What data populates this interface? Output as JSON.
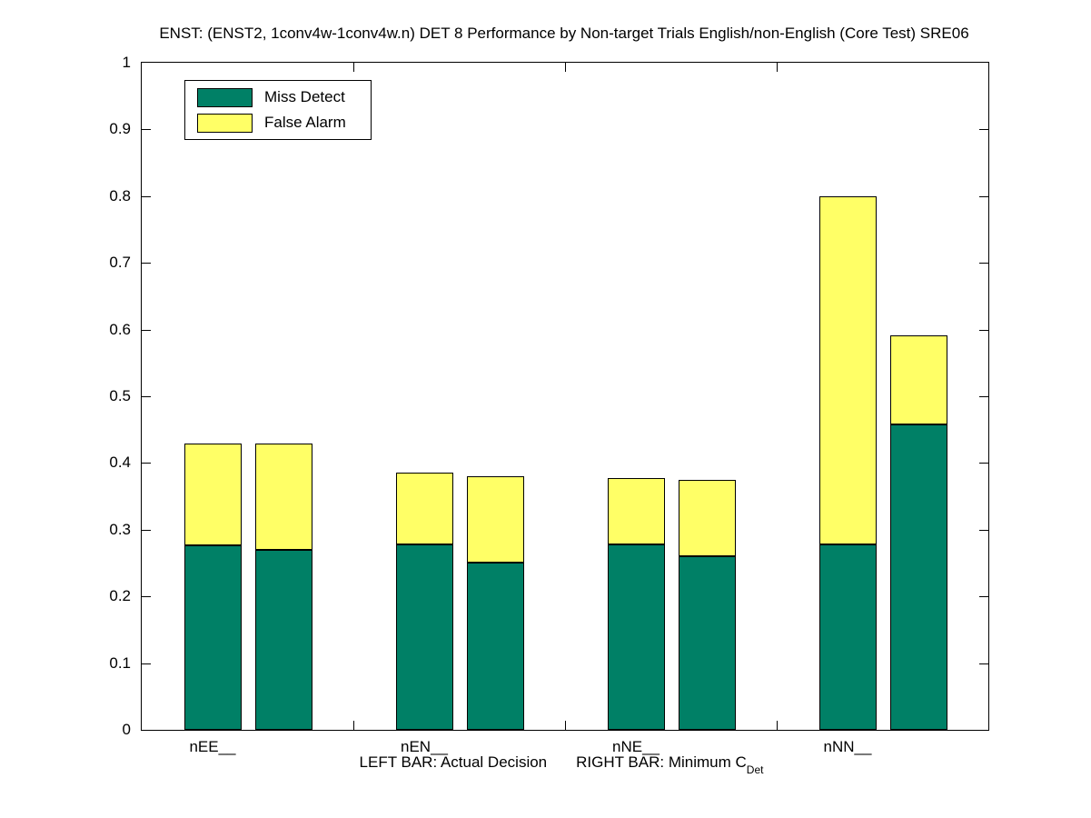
{
  "chart_data": {
    "type": "bar",
    "stacked": true,
    "title": "ENST: (ENST2, 1conv4w-1conv4w.n) DET 8 Performance by Non-target Trials English/non-English (Core Test) SRE06",
    "categories": [
      "nEE__",
      "nEN__",
      "nNE__",
      "nNN__"
    ],
    "yticks": [
      "0",
      "0.1",
      "0.2",
      "0.3",
      "0.4",
      "0.5",
      "0.6",
      "0.7",
      "0.8",
      "0.9",
      "1"
    ],
    "ylim": [
      0,
      1
    ],
    "grid": false,
    "legend_position": "top-left-inside",
    "legend": [
      {
        "label": "Miss Detect",
        "color": "#008066"
      },
      {
        "label": "False Alarm",
        "color": "#FFFF66"
      }
    ],
    "xlabel": {
      "left_text": "LEFT BAR: Actual Decision",
      "right_text": "RIGHT BAR: Minimum C",
      "subscript": "Det"
    },
    "bar_colors": {
      "miss_detect": "#008066",
      "false_alarm": "#FFFF66"
    },
    "bars": [
      {
        "category": "nEE__",
        "actual": {
          "miss_detect": 0.277,
          "false_alarm": 0.152
        },
        "minimum": {
          "miss_detect": 0.27,
          "false_alarm": 0.159
        }
      },
      {
        "category": "nEN__",
        "actual": {
          "miss_detect": 0.278,
          "false_alarm": 0.108
        },
        "minimum": {
          "miss_detect": 0.25,
          "false_alarm": 0.13
        }
      },
      {
        "category": "nNE__",
        "actual": {
          "miss_detect": 0.278,
          "false_alarm": 0.1
        },
        "minimum": {
          "miss_detect": 0.26,
          "false_alarm": 0.114
        }
      },
      {
        "category": "nNN__",
        "actual": {
          "miss_detect": 0.278,
          "false_alarm": 0.522
        },
        "minimum": {
          "miss_detect": 0.458,
          "false_alarm": 0.134
        }
      }
    ]
  }
}
